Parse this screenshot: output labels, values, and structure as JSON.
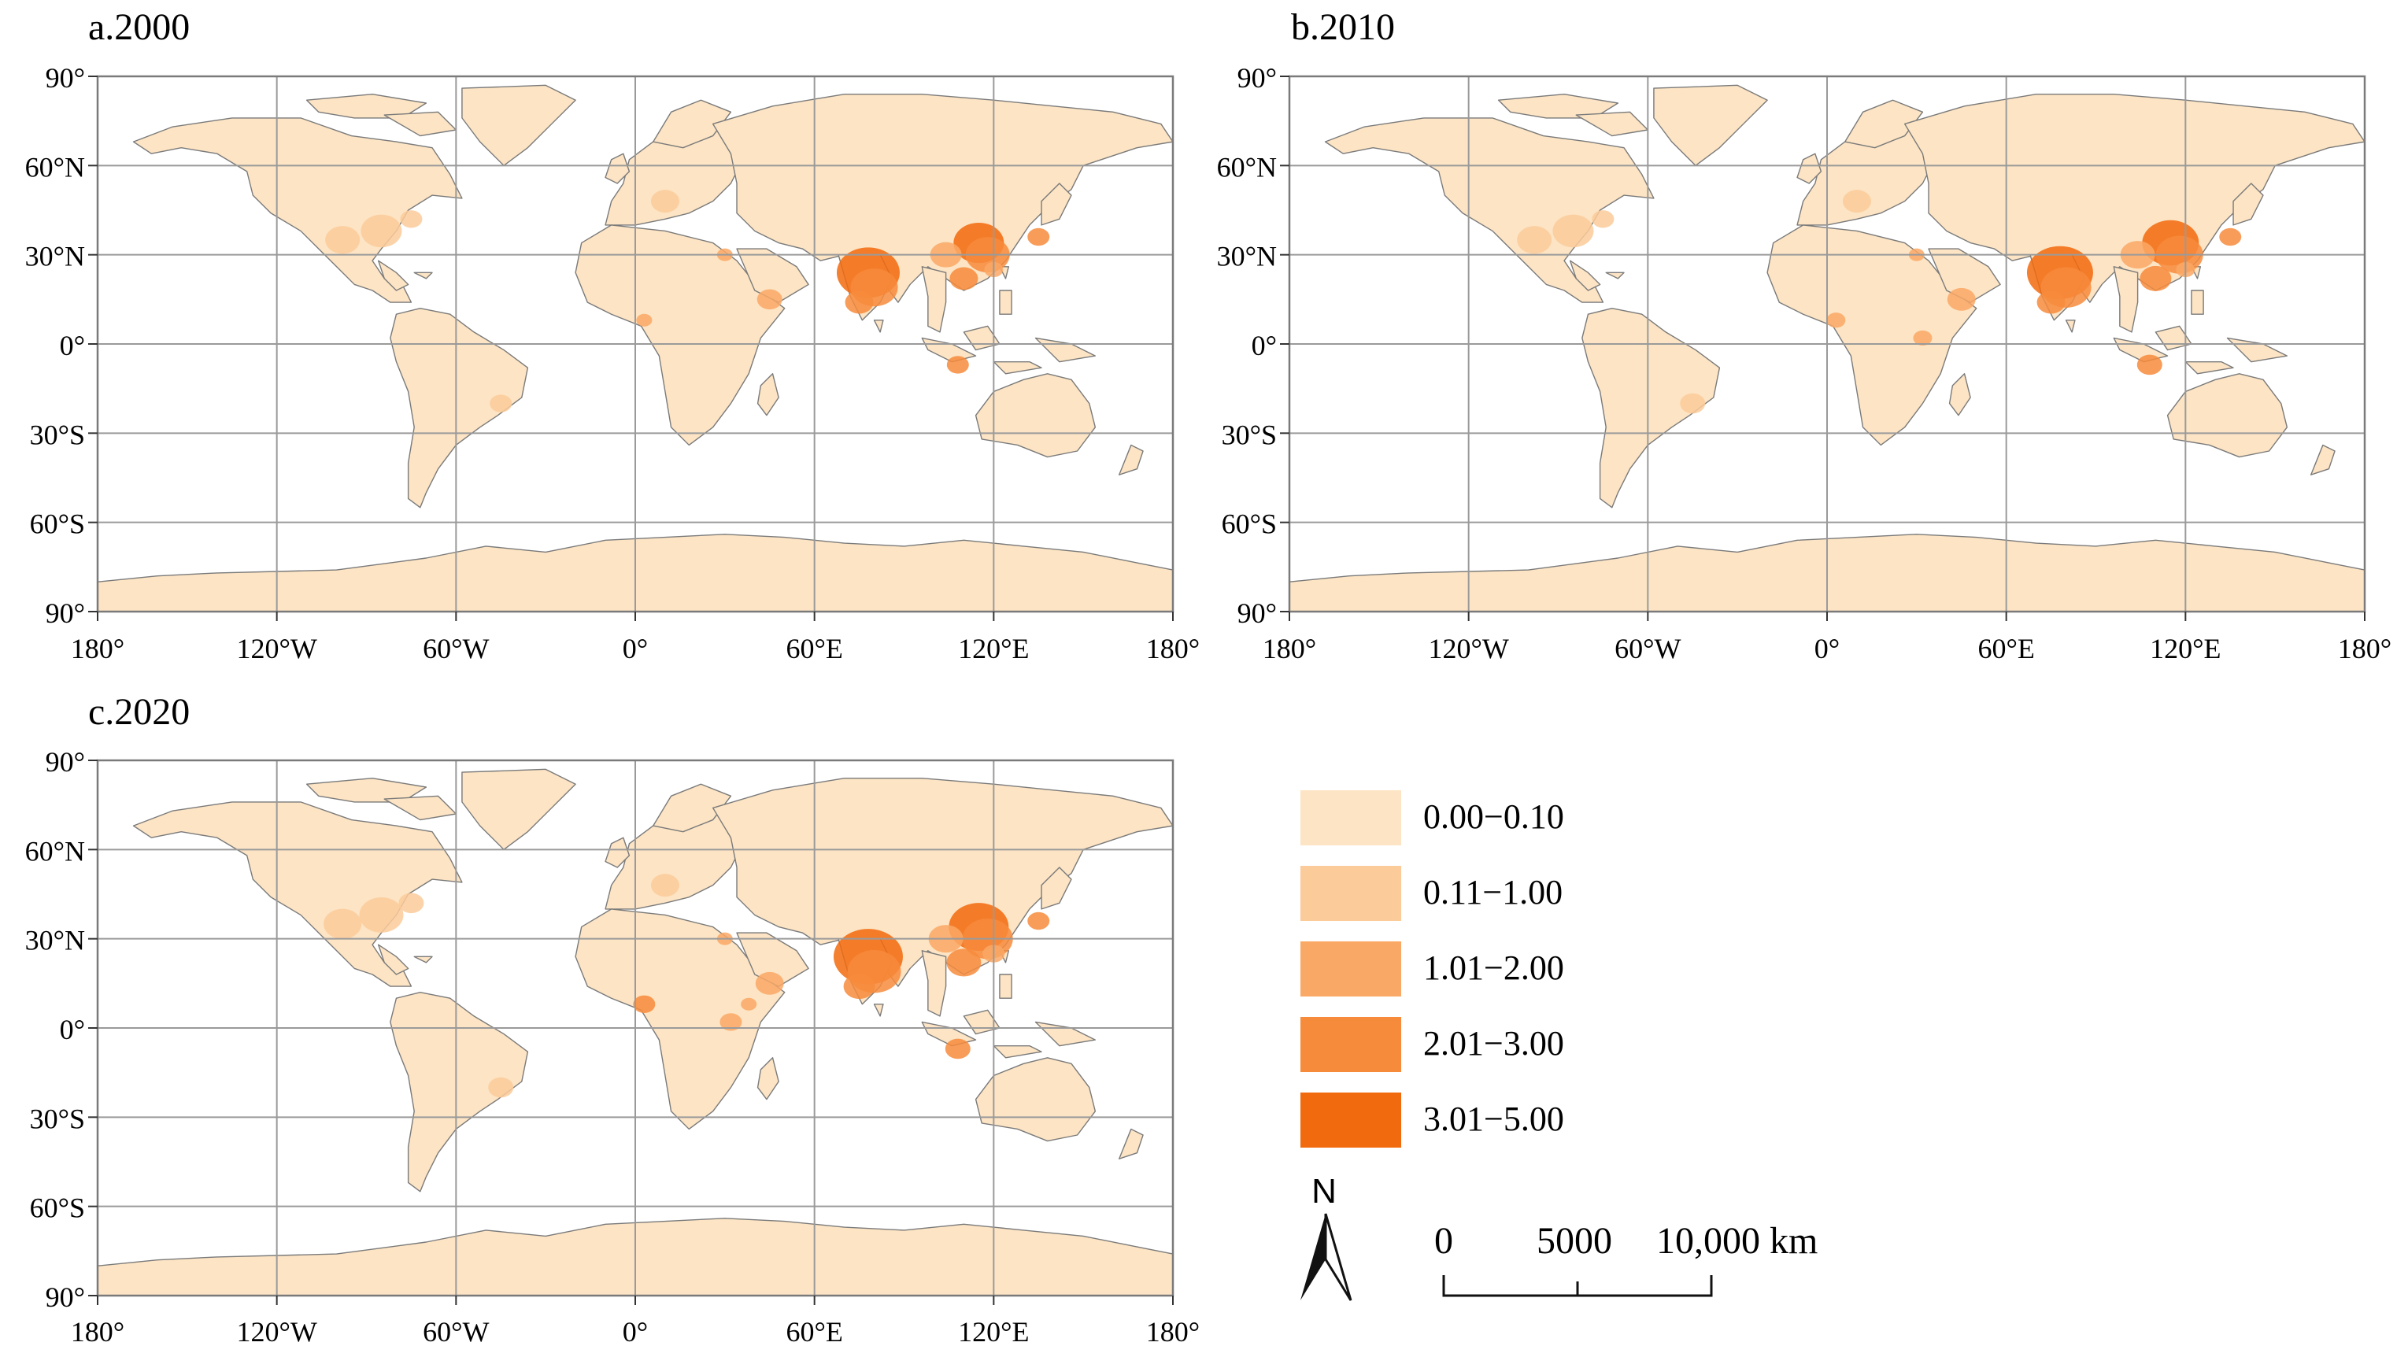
{
  "panels": [
    {
      "id": "a",
      "title": "a.2000"
    },
    {
      "id": "b",
      "title": "b.2010"
    },
    {
      "id": "c",
      "title": "c.2020"
    }
  ],
  "axes": {
    "lat_labels": [
      "90°",
      "60°N",
      "30°N",
      "0°",
      "30°S",
      "60°S",
      "90°"
    ],
    "lat_values": [
      90,
      60,
      30,
      0,
      -30,
      -60,
      -90
    ],
    "lon_labels": [
      "180°",
      "120°W",
      "60°W",
      "0°",
      "60°E",
      "120°E",
      "180°"
    ],
    "lon_values": [
      -180,
      -120,
      -60,
      0,
      60,
      120,
      180
    ],
    "grid": true
  },
  "legend": {
    "items": [
      {
        "label": "0.00−0.10",
        "color": "#FCE4C4"
      },
      {
        "label": "0.11−1.00",
        "color": "#FCCB9A"
      },
      {
        "label": "1.01−2.00",
        "color": "#FAA865"
      },
      {
        "label": "2.01−3.00",
        "color": "#F78B3C"
      },
      {
        "label": "3.01−5.00",
        "color": "#F26A0E"
      }
    ]
  },
  "north_arrow": {
    "label": "N"
  },
  "scale_bar": {
    "ticks": [
      "0",
      "5000"
    ],
    "end_label": "10,000 km"
  },
  "colors": {
    "land": "#FCE4C4",
    "border": "#7A7A7A",
    "grid": "#9A9A9A",
    "frame": "#7A7A7A"
  }
}
